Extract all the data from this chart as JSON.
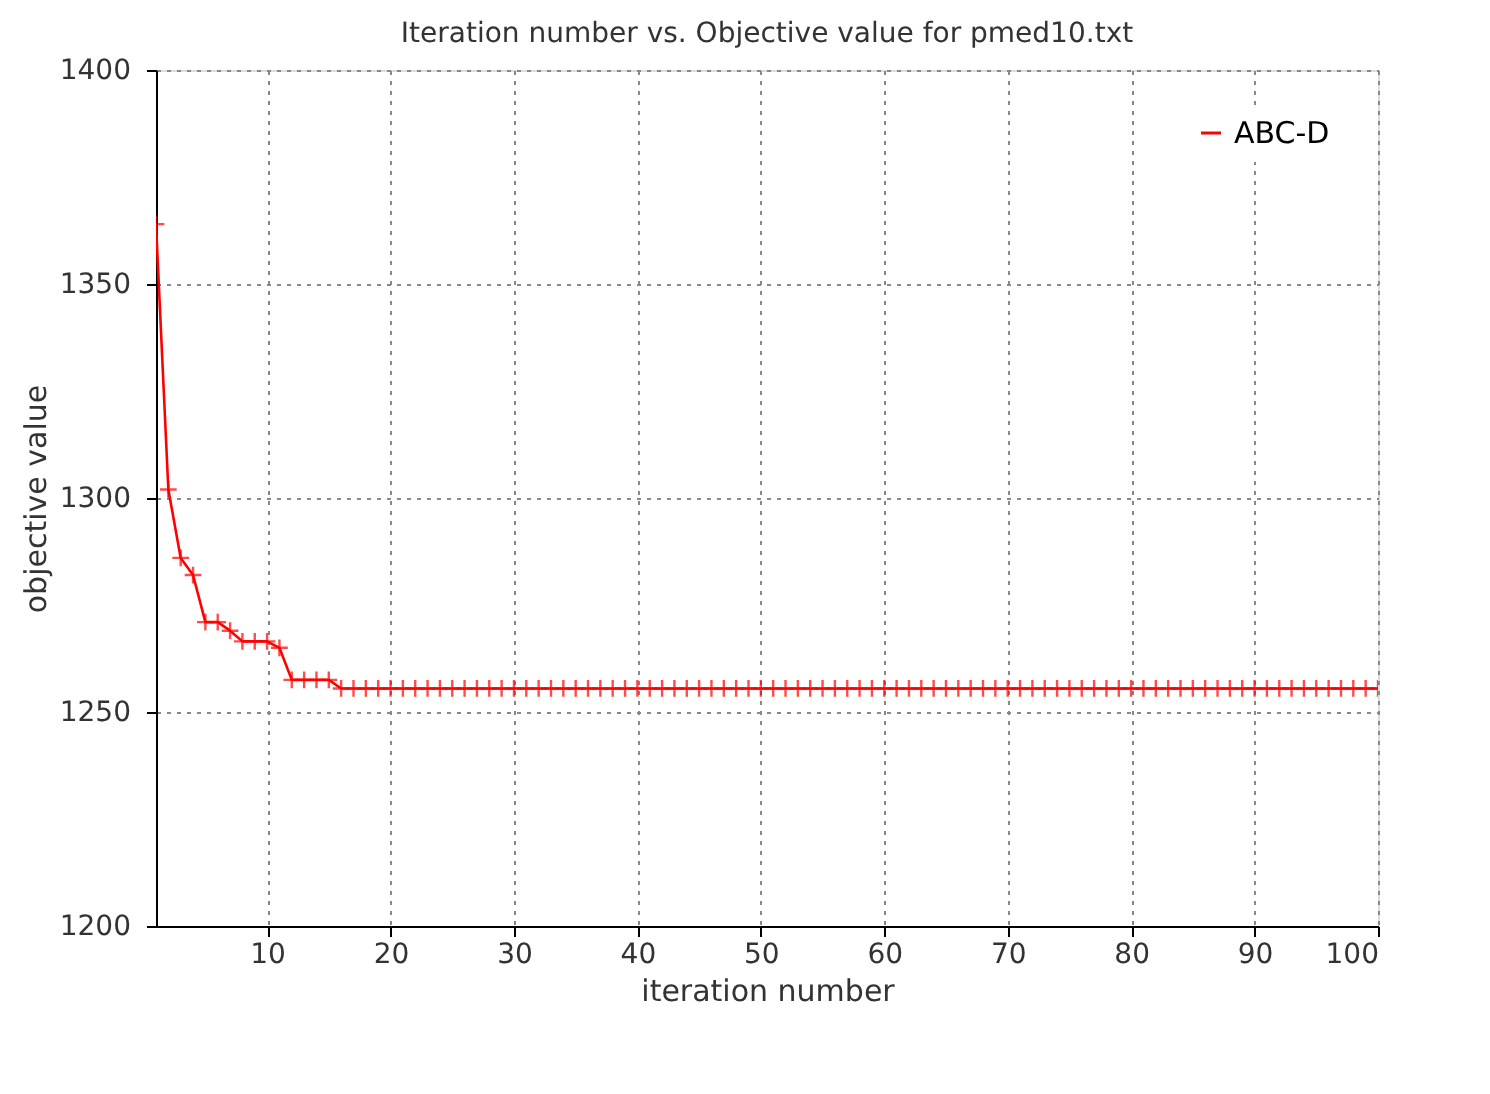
{
  "chart_data": {
    "type": "line",
    "title": "Iteration number vs. Objective value for pmed10.txt",
    "xlabel": "iteration number",
    "ylabel": "objective value",
    "x": [
      1,
      2,
      3,
      4,
      5,
      6,
      7,
      8,
      9,
      10,
      11,
      12,
      13,
      14,
      15,
      16,
      17,
      18,
      19,
      20,
      21,
      22,
      23,
      24,
      25,
      26,
      27,
      28,
      29,
      30,
      31,
      32,
      33,
      34,
      35,
      36,
      37,
      38,
      39,
      40,
      41,
      42,
      43,
      44,
      45,
      46,
      47,
      48,
      49,
      50,
      51,
      52,
      53,
      54,
      55,
      56,
      57,
      58,
      59,
      60,
      61,
      62,
      63,
      64,
      65,
      66,
      67,
      68,
      69,
      70,
      71,
      72,
      73,
      74,
      75,
      76,
      77,
      78,
      79,
      80,
      81,
      82,
      83,
      84,
      85,
      86,
      87,
      88,
      89,
      90,
      91,
      92,
      93,
      94,
      95,
      96,
      97,
      98,
      99,
      100
    ],
    "series": [
      {
        "name": "ABC-D",
        "color": "#ff0000",
        "values": [
          1364,
          1302,
          1286,
          1282,
          1271,
          1271,
          1269,
          1266.5,
          1266.5,
          1266.5,
          1265,
          1257.5,
          1257.5,
          1257.5,
          1257.5,
          1255.5,
          1255.5,
          1255.5,
          1255.5,
          1255.5,
          1255.5,
          1255.5,
          1255.5,
          1255.5,
          1255.5,
          1255.5,
          1255.5,
          1255.5,
          1255.5,
          1255.5,
          1255.5,
          1255.5,
          1255.5,
          1255.5,
          1255.5,
          1255.5,
          1255.5,
          1255.5,
          1255.5,
          1255.5,
          1255.5,
          1255.5,
          1255.5,
          1255.5,
          1255.5,
          1255.5,
          1255.5,
          1255.5,
          1255.5,
          1255.5,
          1255.5,
          1255.5,
          1255.5,
          1255.5,
          1255.5,
          1255.5,
          1255.5,
          1255.5,
          1255.5,
          1255.5,
          1255.5,
          1255.5,
          1255.5,
          1255.5,
          1255.5,
          1255.5,
          1255.5,
          1255.5,
          1255.5,
          1255.5,
          1255.5,
          1255.5,
          1255.5,
          1255.5,
          1255.5,
          1255.5,
          1255.5,
          1255.5,
          1255.5,
          1255.5,
          1255.5,
          1255.5,
          1255.5,
          1255.5,
          1255.5,
          1255.5,
          1255.5,
          1255.5,
          1255.5,
          1255.5,
          1255.5,
          1255.5,
          1255.5,
          1255.5,
          1255.5,
          1255.5,
          1255.5,
          1255.5,
          1255.5,
          1255.5
        ]
      }
    ],
    "xlim": [
      1,
      100
    ],
    "xticks": [
      10,
      20,
      30,
      40,
      50,
      60,
      70,
      80,
      90,
      100
    ],
    "ylim": [
      1200,
      1400
    ],
    "yticks": [
      1200,
      1250,
      1300,
      1350,
      1400
    ],
    "grid": true,
    "legend": "top right",
    "marker": "cross",
    "line_style": "solid"
  }
}
